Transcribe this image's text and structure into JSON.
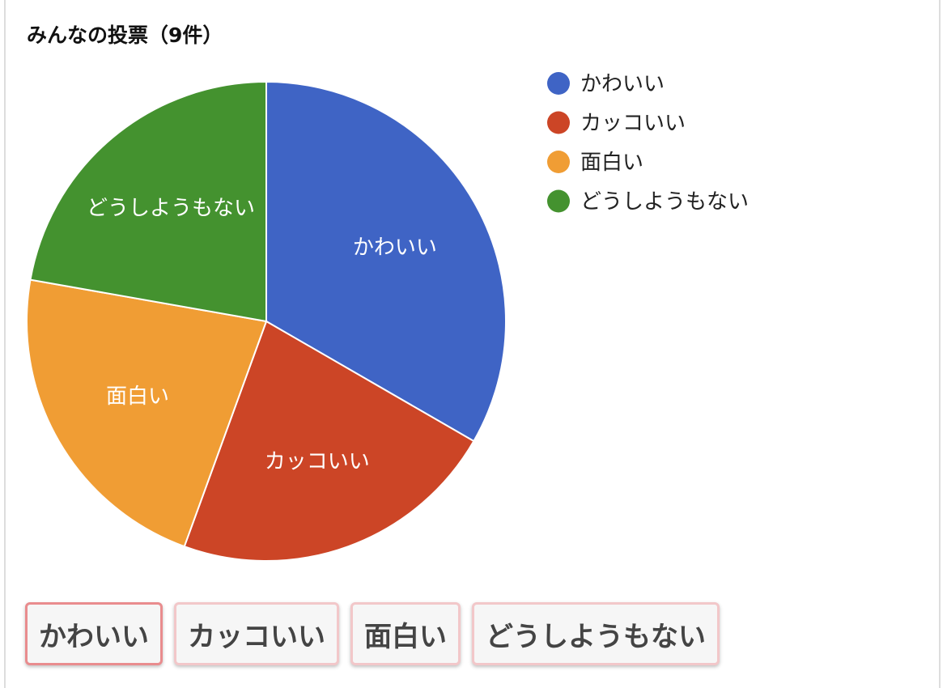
{
  "chart_data": {
    "type": "pie",
    "title": "みんなの投票（9件）",
    "categories": [
      "かわいい",
      "カッコいい",
      "面白い",
      "どうしようもない"
    ],
    "values": [
      3,
      2,
      2,
      2
    ],
    "colors": [
      "#3f64c5",
      "#cc4526",
      "#f09d34",
      "#44922f"
    ],
    "legend": "right"
  }
}
